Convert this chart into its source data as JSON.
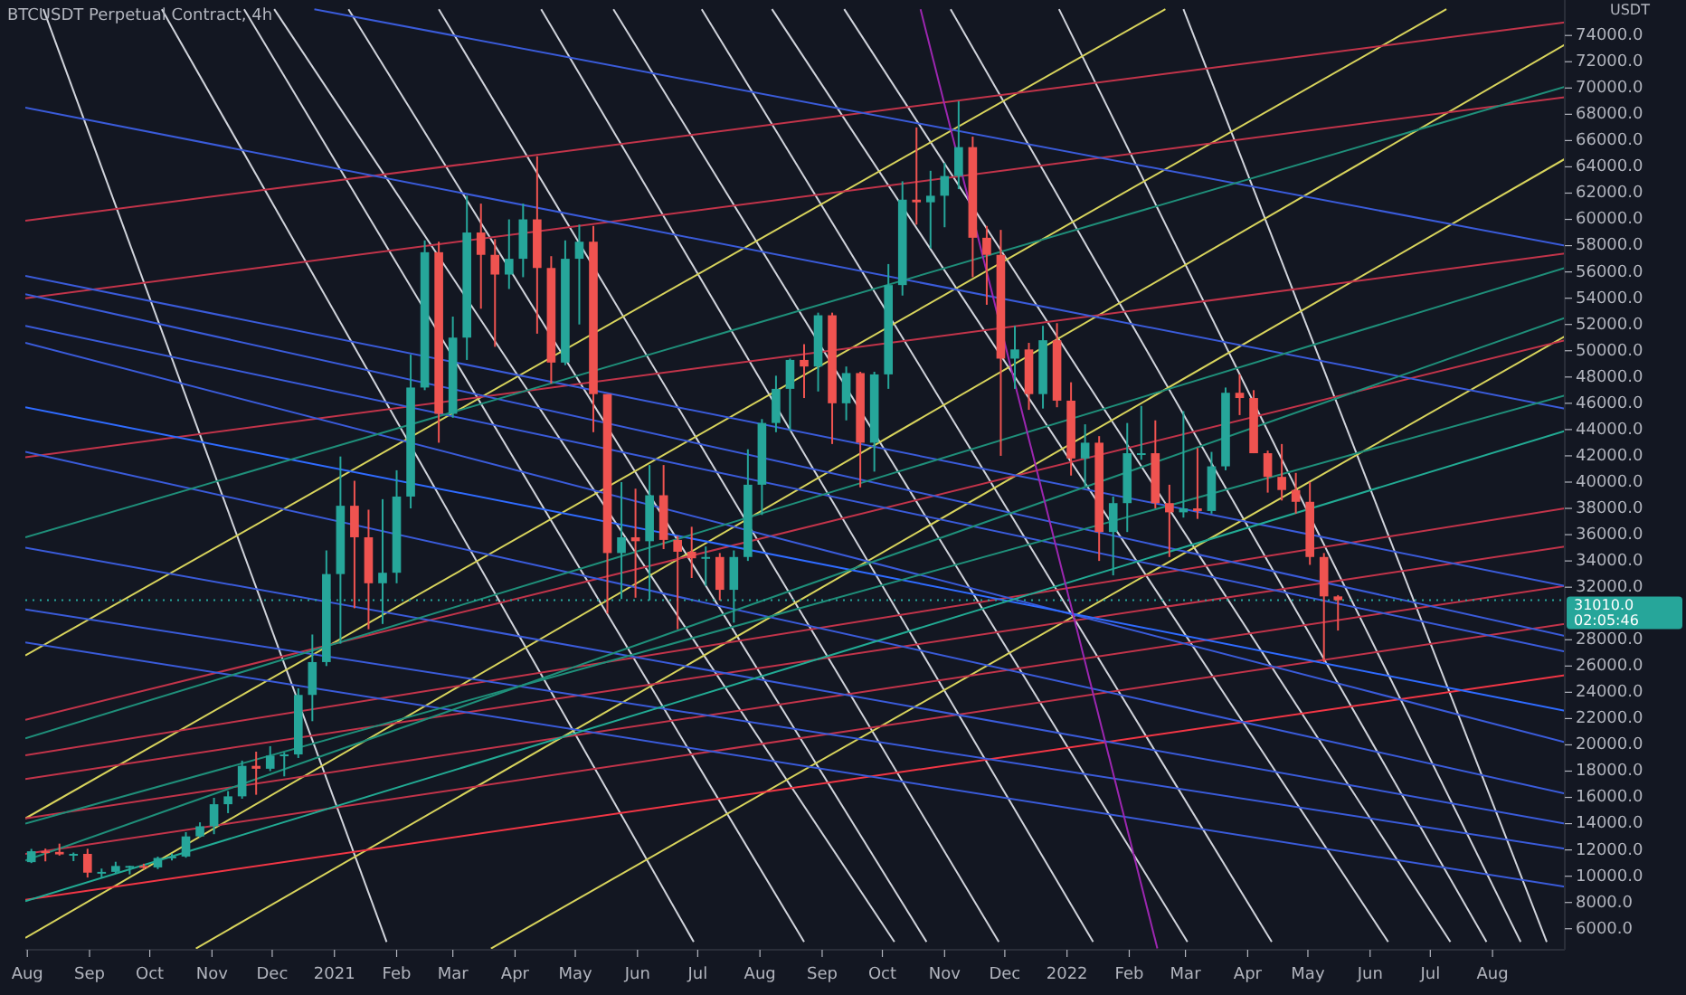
{
  "chart_data": {
    "type": "candlestick",
    "title": "BTCUSDT Perpetual Contract, 4h",
    "ylabel": "USDT",
    "x": [
      "2020-08-03",
      "2020-08-10",
      "2020-08-17",
      "2020-08-24",
      "2020-08-31",
      "2020-09-07",
      "2020-09-14",
      "2020-09-21",
      "2020-09-28",
      "2020-10-05",
      "2020-10-12",
      "2020-10-19",
      "2020-10-26",
      "2020-11-02",
      "2020-11-09",
      "2020-11-16",
      "2020-11-23",
      "2020-11-30",
      "2020-12-07",
      "2020-12-14",
      "2020-12-21",
      "2020-12-28",
      "2021-01-04",
      "2021-01-11",
      "2021-01-18",
      "2021-01-25",
      "2021-02-01",
      "2021-02-08",
      "2021-02-15",
      "2021-02-22",
      "2021-03-01",
      "2021-03-08",
      "2021-03-15",
      "2021-03-22",
      "2021-03-29",
      "2021-04-05",
      "2021-04-12",
      "2021-04-19",
      "2021-04-26",
      "2021-05-03",
      "2021-05-10",
      "2021-05-17",
      "2021-05-24",
      "2021-05-31",
      "2021-06-07",
      "2021-06-14",
      "2021-06-21",
      "2021-06-28",
      "2021-07-05",
      "2021-07-12",
      "2021-07-19",
      "2021-07-26",
      "2021-08-02",
      "2021-08-09",
      "2021-08-16",
      "2021-08-23",
      "2021-08-30",
      "2021-09-06",
      "2021-09-13",
      "2021-09-20",
      "2021-09-27",
      "2021-10-04",
      "2021-10-11",
      "2021-10-18",
      "2021-10-25",
      "2021-11-01",
      "2021-11-08",
      "2021-11-15",
      "2021-11-22",
      "2021-11-29",
      "2021-12-06",
      "2021-12-13",
      "2021-12-20",
      "2021-12-27",
      "2022-01-03",
      "2022-01-10",
      "2022-01-17",
      "2022-01-24",
      "2022-01-31",
      "2022-02-07",
      "2022-02-14",
      "2022-02-21",
      "2022-02-28",
      "2022-03-07",
      "2022-03-14",
      "2022-03-21",
      "2022-03-28",
      "2022-04-04",
      "2022-04-11",
      "2022-04-18",
      "2022-04-25",
      "2022-05-02",
      "2022-05-09",
      "2022-05-16"
    ],
    "ohlc": [
      [
        11070,
        12080,
        11000,
        11900
      ],
      [
        11900,
        12100,
        11130,
        11850
      ],
      [
        11850,
        12480,
        11570,
        11660
      ],
      [
        11660,
        11800,
        11150,
        11700
      ],
      [
        11700,
        12090,
        9900,
        10270
      ],
      [
        10270,
        10580,
        9880,
        10330
      ],
      [
        10330,
        11100,
        10200,
        10780
      ],
      [
        10780,
        10800,
        10140,
        10780
      ],
      [
        10780,
        10950,
        10520,
        10670
      ],
      [
        10670,
        11490,
        10540,
        11390
      ],
      [
        11390,
        11720,
        11200,
        11500
      ],
      [
        11500,
        13350,
        11410,
        13030
      ],
      [
        13030,
        14100,
        12950,
        13800
      ],
      [
        13800,
        15970,
        13200,
        15480
      ],
      [
        15480,
        16480,
        14800,
        16080
      ],
      [
        16080,
        18800,
        15900,
        18400
      ],
      [
        18400,
        19480,
        16200,
        18180
      ],
      [
        18180,
        19900,
        18000,
        19180
      ],
      [
        19180,
        19420,
        17600,
        19270
      ],
      [
        19270,
        24300,
        19000,
        23800
      ],
      [
        23800,
        28400,
        21800,
        26300
      ],
      [
        26300,
        34800,
        26000,
        33000
      ],
      [
        33000,
        41950,
        27700,
        38200
      ],
      [
        38200,
        40100,
        30400,
        35800
      ],
      [
        35800,
        37900,
        28800,
        32300
      ],
      [
        32300,
        38700,
        29200,
        33100
      ],
      [
        33100,
        40900,
        32300,
        38900
      ],
      [
        38900,
        49700,
        38000,
        47200
      ],
      [
        47200,
        58400,
        47000,
        57500
      ],
      [
        57500,
        58300,
        43000,
        45200
      ],
      [
        45200,
        52600,
        44900,
        51000
      ],
      [
        51000,
        61800,
        49300,
        59000
      ],
      [
        59000,
        61200,
        53200,
        57300
      ],
      [
        57300,
        58500,
        50300,
        55800
      ],
      [
        55800,
        60000,
        54700,
        57000
      ],
      [
        57000,
        61200,
        55600,
        60000
      ],
      [
        60000,
        64800,
        51300,
        56300
      ],
      [
        56300,
        57200,
        47500,
        49100
      ],
      [
        49100,
        58400,
        48900,
        57000
      ],
      [
        57000,
        59600,
        52000,
        58300
      ],
      [
        58300,
        59500,
        43800,
        46700
      ],
      [
        46700,
        46700,
        30000,
        34600
      ],
      [
        34600,
        40000,
        31100,
        35800
      ],
      [
        35800,
        39500,
        31200,
        35500
      ],
      [
        35500,
        41300,
        31000,
        39000
      ],
      [
        39000,
        41300,
        34900,
        35600
      ],
      [
        35600,
        35900,
        28800,
        34700
      ],
      [
        34700,
        36600,
        32700,
        34200
      ],
      [
        34200,
        35100,
        32100,
        34300
      ],
      [
        34300,
        34600,
        31000,
        31800
      ],
      [
        31800,
        34800,
        29300,
        34300
      ],
      [
        34300,
        42500,
        34000,
        39800
      ],
      [
        39800,
        44800,
        37500,
        44500
      ],
      [
        44500,
        48100,
        43800,
        47100
      ],
      [
        47100,
        49400,
        43900,
        49300
      ],
      [
        49300,
        50500,
        46400,
        48800
      ],
      [
        48800,
        52900,
        46900,
        52700
      ],
      [
        52700,
        52900,
        42900,
        46000
      ],
      [
        46000,
        48800,
        44700,
        48300
      ],
      [
        48300,
        48400,
        39600,
        43000
      ],
      [
        43000,
        48400,
        40800,
        48200
      ],
      [
        48200,
        56600,
        47100,
        55000
      ],
      [
        55000,
        62900,
        54200,
        61500
      ],
      [
        61500,
        67000,
        59600,
        61300
      ],
      [
        61300,
        63700,
        57800,
        61800
      ],
      [
        61800,
        64300,
        59400,
        63300
      ],
      [
        63300,
        69000,
        62300,
        65500
      ],
      [
        65500,
        66300,
        55600,
        58600
      ],
      [
        58600,
        59500,
        53500,
        57300
      ],
      [
        57300,
        59200,
        42000,
        49400
      ],
      [
        49400,
        51900,
        47100,
        50100
      ],
      [
        50100,
        50600,
        45500,
        46700
      ],
      [
        46700,
        51900,
        45600,
        50800
      ],
      [
        50800,
        52100,
        45700,
        46200
      ],
      [
        46200,
        47600,
        40500,
        41800
      ],
      [
        41800,
        44400,
        39700,
        43000
      ],
      [
        43000,
        43500,
        34000,
        36200
      ],
      [
        36200,
        38900,
        32900,
        38400
      ],
      [
        38400,
        44500,
        36200,
        42200
      ],
      [
        42200,
        45800,
        41700,
        42200
      ],
      [
        42200,
        44700,
        38000,
        38400
      ],
      [
        38400,
        39800,
        34300,
        37700
      ],
      [
        37700,
        45400,
        37300,
        38000
      ],
      [
        38000,
        42600,
        37200,
        37800
      ],
      [
        37800,
        42300,
        37600,
        41200
      ],
      [
        41200,
        47200,
        40900,
        46800
      ],
      [
        46800,
        48200,
        45100,
        46400
      ],
      [
        46400,
        47000,
        42200,
        42200
      ],
      [
        42200,
        42400,
        39200,
        40400
      ],
      [
        40400,
        42900,
        38600,
        39400
      ],
      [
        39400,
        40700,
        37600,
        38500
      ],
      [
        38500,
        40000,
        33700,
        34300
      ],
      [
        34300,
        34600,
        26300,
        31300
      ],
      [
        31300,
        31400,
        28700,
        31010
      ]
    ],
    "series": [
      {
        "type": "line",
        "color": "#d1d4dc",
        "x": [
          "2020-08-09",
          "2021-01-27"
        ],
        "values": [
          76000,
          5000
        ]
      },
      {
        "type": "line",
        "color": "#d1d4dc",
        "x": [
          "2020-10-07",
          "2021-06-29"
        ],
        "values": [
          76000,
          5000
        ]
      },
      {
        "type": "line",
        "color": "#d1d4dc",
        "x": [
          "2020-11-17",
          "2021-08-23"
        ],
        "values": [
          76000,
          5000
        ]
      },
      {
        "type": "line",
        "color": "#d1d4dc",
        "x": [
          "2020-12-02",
          "2021-10-07"
        ],
        "values": [
          76000,
          5000
        ]
      },
      {
        "type": "line",
        "color": "#d1d4dc",
        "x": [
          "2021-01-08",
          "2021-10-23"
        ],
        "values": [
          76000,
          5000
        ]
      },
      {
        "type": "line",
        "color": "#d1d4dc",
        "x": [
          "2021-02-22",
          "2021-11-28"
        ],
        "values": [
          76000,
          5000
        ]
      },
      {
        "type": "line",
        "color": "#d1d4dc",
        "x": [
          "2021-04-14",
          "2022-01-14"
        ],
        "values": [
          76000,
          5000
        ]
      },
      {
        "type": "line",
        "color": "#d1d4dc",
        "x": [
          "2021-05-20",
          "2022-03-02"
        ],
        "values": [
          76000,
          5000
        ]
      },
      {
        "type": "line",
        "color": "#d1d4dc",
        "x": [
          "2021-07-03",
          "2022-04-13"
        ],
        "values": [
          76000,
          5000
        ]
      },
      {
        "type": "line",
        "color": "#d1d4dc",
        "x": [
          "2021-08-07",
          "2022-06-10"
        ],
        "values": [
          76000,
          5000
        ]
      },
      {
        "type": "line",
        "color": "#d1d4dc",
        "x": [
          "2021-09-12",
          "2022-07-11"
        ],
        "values": [
          76000,
          5000
        ]
      },
      {
        "type": "line",
        "color": "#d1d4dc",
        "x": [
          "2021-11-04",
          "2022-07-29"
        ],
        "values": [
          76000,
          5000
        ]
      },
      {
        "type": "line",
        "color": "#d1d4dc",
        "x": [
          "2021-12-28",
          "2022-08-15"
        ],
        "values": [
          76000,
          5000
        ]
      },
      {
        "type": "line",
        "color": "#d1d4dc",
        "x": [
          "2022-02-28",
          "2022-08-28"
        ],
        "values": [
          76000,
          5000
        ]
      },
      {
        "type": "line",
        "color": "#d8d45c",
        "x": [
          "2020-07-31",
          "2022-02-19"
        ],
        "values": [
          26800,
          76000
        ]
      },
      {
        "type": "line",
        "color": "#d8d45c",
        "x": [
          "2020-07-31",
          "2022-09-06"
        ],
        "values": [
          5300,
          73300
        ]
      },
      {
        "type": "line",
        "color": "#d8d45c",
        "x": [
          "2021-03-20",
          "2022-09-06"
        ],
        "values": [
          4500,
          51100
        ]
      },
      {
        "type": "line",
        "color": "#d8d45c",
        "x": [
          "2020-10-24",
          "2022-09-06"
        ],
        "values": [
          4500,
          64600
        ]
      },
      {
        "type": "line",
        "color": "#d8d45c",
        "x": [
          "2020-07-31",
          "2022-07-09"
        ],
        "values": [
          14400,
          76000
        ]
      },
      {
        "type": "line",
        "color": "#c2344a",
        "x": [
          "2020-07-31",
          "2022-09-06"
        ],
        "values": [
          59900,
          75000
        ]
      },
      {
        "type": "line",
        "color": "#c2344a",
        "x": [
          "2020-07-31",
          "2022-09-06"
        ],
        "values": [
          54000,
          69300
        ]
      },
      {
        "type": "line",
        "color": "#c2344a",
        "x": [
          "2020-07-31",
          "2022-09-06"
        ],
        "values": [
          41900,
          57400
        ]
      },
      {
        "type": "line",
        "color": "#c2344a",
        "x": [
          "2020-07-31",
          "2022-09-06"
        ],
        "values": [
          21900,
          50800
        ]
      },
      {
        "type": "line",
        "color": "#c2344a",
        "x": [
          "2020-07-31",
          "2022-09-06"
        ],
        "values": [
          19200,
          38000
        ]
      },
      {
        "type": "line",
        "color": "#c2344a",
        "x": [
          "2020-07-31",
          "2022-09-06"
        ],
        "values": [
          17400,
          35100
        ]
      },
      {
        "type": "line",
        "color": "#c2344a",
        "x": [
          "2020-07-31",
          "2022-09-06"
        ],
        "values": [
          14400,
          32100
        ]
      },
      {
        "type": "line",
        "color": "#c2344a",
        "x": [
          "2020-07-31",
          "2022-09-06"
        ],
        "values": [
          11700,
          29200
        ]
      },
      {
        "type": "line",
        "color": "#f23645",
        "x": [
          "2020-07-31",
          "2022-09-06"
        ],
        "values": [
          8200,
          25300
        ]
      },
      {
        "type": "line",
        "color": "#3a5bd9",
        "x": [
          "2020-12-22",
          "2022-09-06"
        ],
        "values": [
          76000,
          58000
        ]
      },
      {
        "type": "line",
        "color": "#3a5bd9",
        "x": [
          "2020-07-31",
          "2022-09-06"
        ],
        "values": [
          68500,
          45600
        ]
      },
      {
        "type": "line",
        "color": "#3a5bd9",
        "x": [
          "2020-07-31",
          "2022-09-06"
        ],
        "values": [
          55700,
          32100
        ]
      },
      {
        "type": "line",
        "color": "#3a5bd9",
        "x": [
          "2020-07-31",
          "2022-09-06"
        ],
        "values": [
          54300,
          28300
        ]
      },
      {
        "type": "line",
        "color": "#3a5bd9",
        "x": [
          "2020-07-31",
          "2022-09-06"
        ],
        "values": [
          51900,
          27100
        ]
      },
      {
        "type": "line",
        "color": "#3a5bd9",
        "x": [
          "2020-07-31",
          "2022-09-06"
        ],
        "values": [
          50600,
          20200
        ]
      },
      {
        "type": "line",
        "color": "#3a5bd9",
        "x": [
          "2020-07-31",
          "2022-09-06"
        ],
        "values": [
          42300,
          16300
        ]
      },
      {
        "type": "line",
        "color": "#3a5bd9",
        "x": [
          "2020-07-31",
          "2022-09-06"
        ],
        "values": [
          35000,
          14000
        ]
      },
      {
        "type": "line",
        "color": "#3a5bd9",
        "x": [
          "2020-07-31",
          "2022-09-06"
        ],
        "values": [
          30300,
          12100
        ]
      },
      {
        "type": "line",
        "color": "#3a5bd9",
        "x": [
          "2020-07-31",
          "2022-09-06"
        ],
        "values": [
          27800,
          9200
        ]
      },
      {
        "type": "line",
        "color": "#2f6bff",
        "x": [
          "2020-07-31",
          "2022-09-06"
        ],
        "values": [
          45700,
          22600
        ]
      },
      {
        "type": "line",
        "color": "#1f8f7a",
        "x": [
          "2020-07-31",
          "2022-09-06"
        ],
        "values": [
          35800,
          70100
        ]
      },
      {
        "type": "line",
        "color": "#1f8f7a",
        "x": [
          "2020-07-31",
          "2022-09-06"
        ],
        "values": [
          20500,
          56300
        ]
      },
      {
        "type": "line",
        "color": "#1f8f7a",
        "x": [
          "2020-07-31",
          "2022-09-06"
        ],
        "values": [
          14000,
          46600
        ]
      },
      {
        "type": "line",
        "color": "#1f8f7a",
        "x": [
          "2020-07-31",
          "2022-09-06"
        ],
        "values": [
          11200,
          52500
        ]
      },
      {
        "type": "line",
        "color": "#22ab94",
        "x": [
          "2020-07-31",
          "2022-09-06"
        ],
        "values": [
          8100,
          43900
        ]
      },
      {
        "type": "line",
        "color": "#9c27b0",
        "x": [
          "2021-10-20",
          "2022-02-15"
        ],
        "values": [
          76000,
          4500
        ]
      }
    ],
    "xlim": [
      "2020-07-31",
      "2022-09-06"
    ],
    "xticks": [
      {
        "value": "2020-08-01",
        "label": "Aug"
      },
      {
        "value": "2020-09-01",
        "label": "Sep"
      },
      {
        "value": "2020-10-01",
        "label": "Oct"
      },
      {
        "value": "2020-11-01",
        "label": "Nov"
      },
      {
        "value": "2020-12-01",
        "label": "Dec"
      },
      {
        "value": "2021-01-01",
        "label": "2021"
      },
      {
        "value": "2021-02-01",
        "label": "Feb"
      },
      {
        "value": "2021-03-01",
        "label": "Mar"
      },
      {
        "value": "2021-04-01",
        "label": "Apr"
      },
      {
        "value": "2021-05-01",
        "label": "May"
      },
      {
        "value": "2021-06-01",
        "label": "Jun"
      },
      {
        "value": "2021-07-01",
        "label": "Jul"
      },
      {
        "value": "2021-08-01",
        "label": "Aug"
      },
      {
        "value": "2021-09-01",
        "label": "Sep"
      },
      {
        "value": "2021-10-01",
        "label": "Oct"
      },
      {
        "value": "2021-11-01",
        "label": "Nov"
      },
      {
        "value": "2021-12-01",
        "label": "Dec"
      },
      {
        "value": "2022-01-01",
        "label": "2022"
      },
      {
        "value": "2022-02-01",
        "label": "Feb"
      },
      {
        "value": "2022-03-01",
        "label": "Mar"
      },
      {
        "value": "2022-04-01",
        "label": "Apr"
      },
      {
        "value": "2022-05-01",
        "label": "May"
      },
      {
        "value": "2022-06-01",
        "label": "Jun"
      },
      {
        "value": "2022-07-01",
        "label": "Jul"
      },
      {
        "value": "2022-08-01",
        "label": "Aug"
      }
    ],
    "ylim": [
      4400,
      76700
    ],
    "yticks": [
      {
        "value": 6000,
        "label": "6000.0"
      },
      {
        "value": 8000,
        "label": "8000.0"
      },
      {
        "value": 10000,
        "label": "10000.0"
      },
      {
        "value": 12000,
        "label": "12000.0"
      },
      {
        "value": 14000,
        "label": "14000.0"
      },
      {
        "value": 16000,
        "label": "16000.0"
      },
      {
        "value": 18000,
        "label": "18000.0"
      },
      {
        "value": 20000,
        "label": "20000.0"
      },
      {
        "value": 22000,
        "label": "22000.0"
      },
      {
        "value": 24000,
        "label": "24000.0"
      },
      {
        "value": 26000,
        "label": "26000.0"
      },
      {
        "value": 28000,
        "label": "28000.0"
      },
      {
        "value": 32000,
        "label": "32000.0"
      },
      {
        "value": 34000,
        "label": "34000.0"
      },
      {
        "value": 36000,
        "label": "36000.0"
      },
      {
        "value": 38000,
        "label": "38000.0"
      },
      {
        "value": 40000,
        "label": "40000.0"
      },
      {
        "value": 42000,
        "label": "42000.0"
      },
      {
        "value": 44000,
        "label": "44000.0"
      },
      {
        "value": 46000,
        "label": "46000.0"
      },
      {
        "value": 48000,
        "label": "48000.0"
      },
      {
        "value": 50000,
        "label": "50000.0"
      },
      {
        "value": 52000,
        "label": "52000.0"
      },
      {
        "value": 54000,
        "label": "54000.0"
      },
      {
        "value": 56000,
        "label": "56000.0"
      },
      {
        "value": 58000,
        "label": "58000.0"
      },
      {
        "value": 60000,
        "label": "60000.0"
      },
      {
        "value": 62000,
        "label": "62000.0"
      },
      {
        "value": 64000,
        "label": "64000.0"
      },
      {
        "value": 66000,
        "label": "66000.0"
      },
      {
        "value": 68000,
        "label": "68000.0"
      },
      {
        "value": 70000,
        "label": "70000.0"
      },
      {
        "value": 72000,
        "label": "72000.0"
      },
      {
        "value": 74000,
        "label": "74000.0"
      }
    ],
    "ref_lines": [
      {
        "axis": "y",
        "value": 31010,
        "label": "31010.0",
        "color": "#26a69a",
        "line_style": "dotted"
      }
    ],
    "annotations": [
      "02:05:46"
    ]
  }
}
